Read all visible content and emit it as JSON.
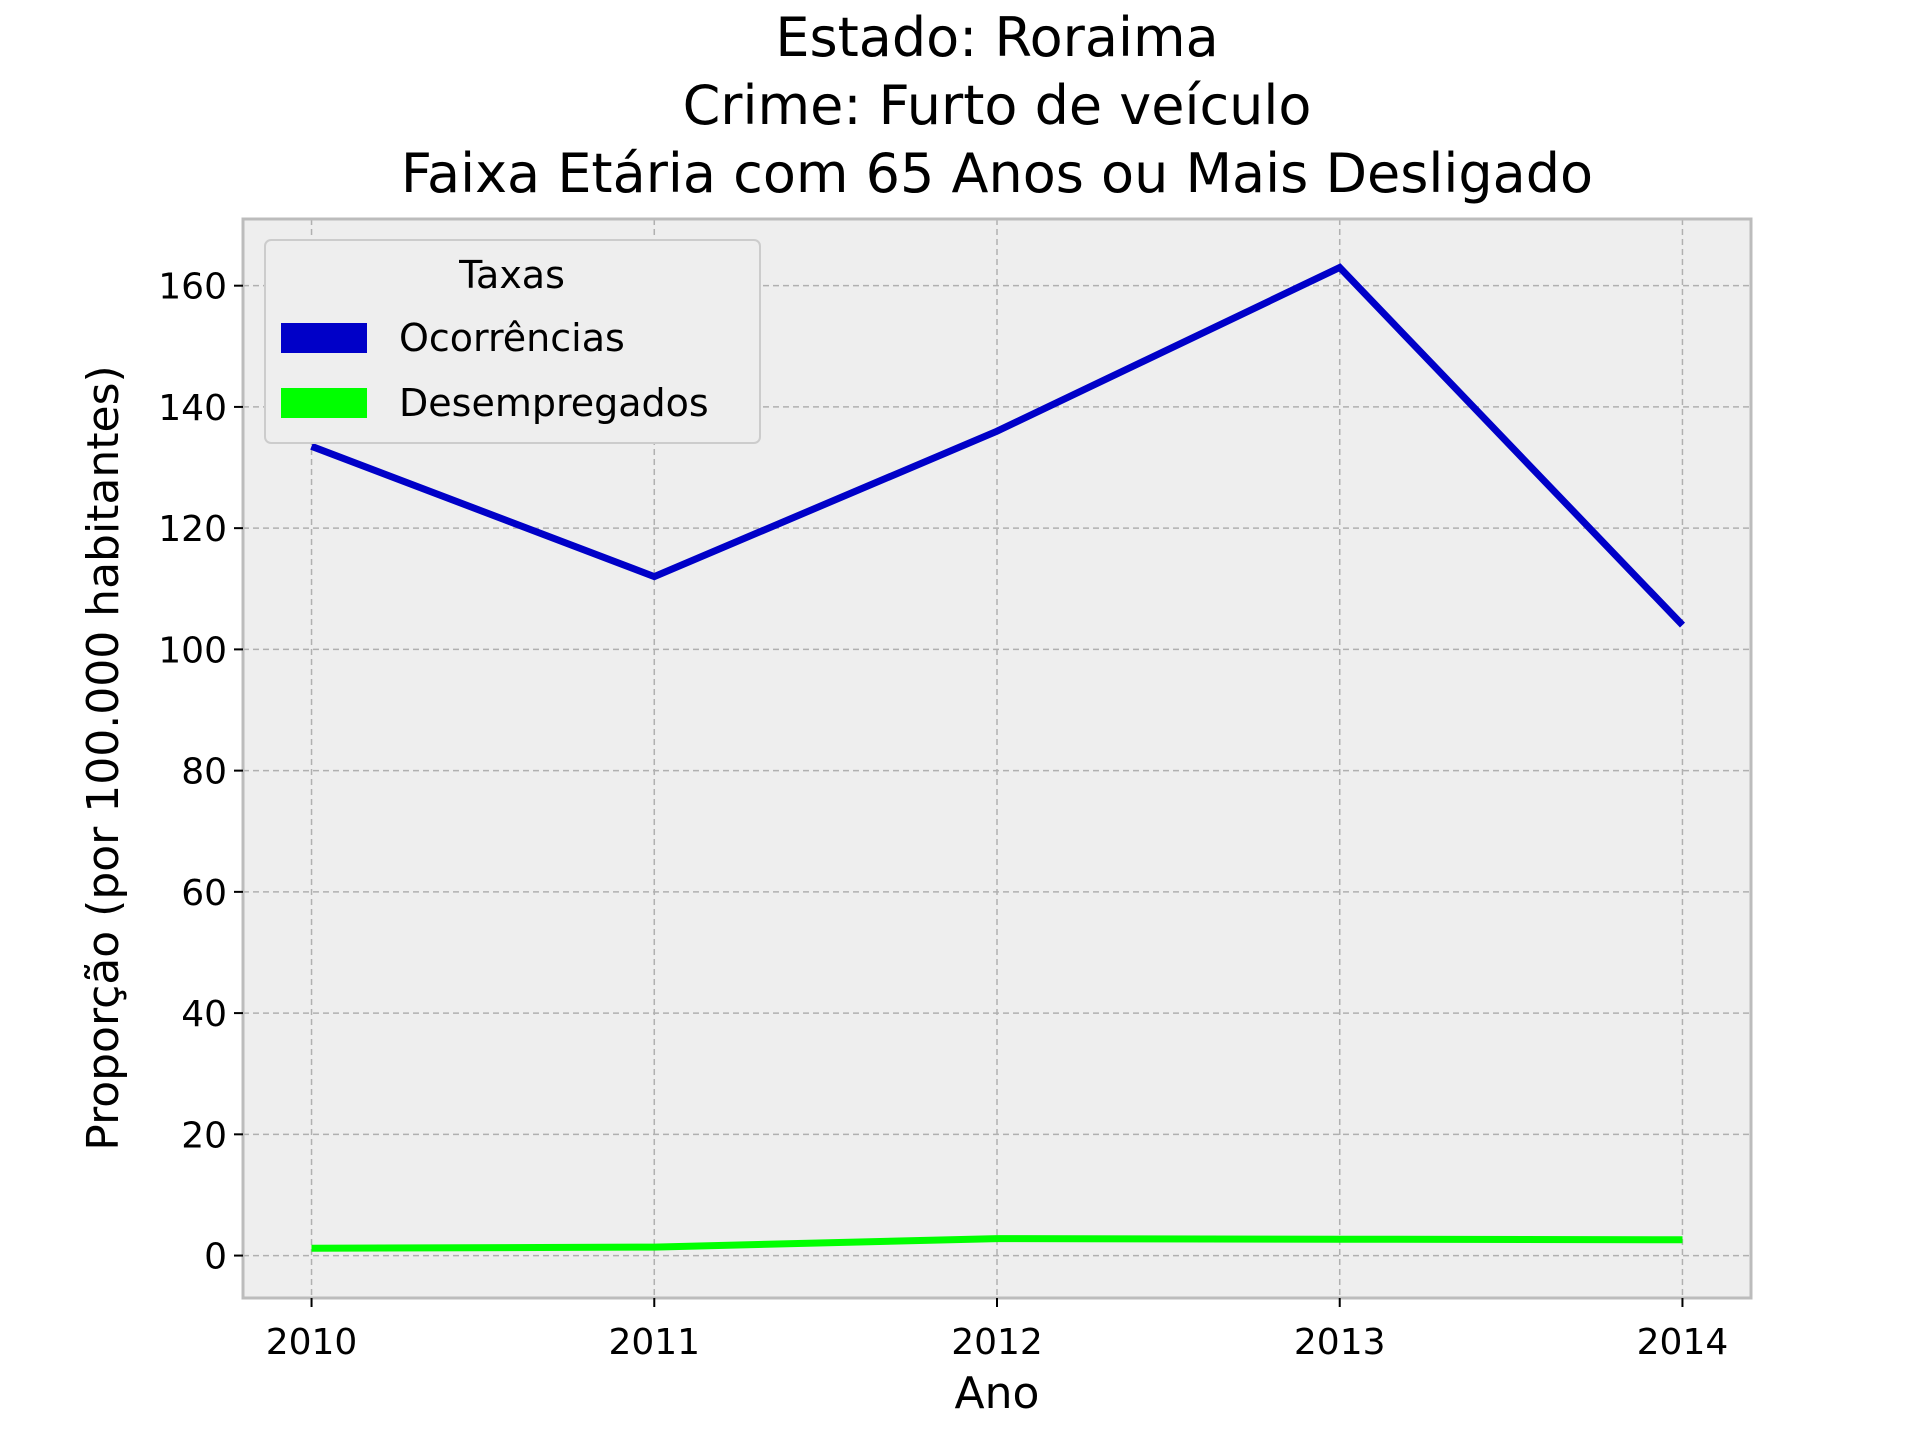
{
  "chart_data": {
    "type": "line",
    "title_lines": [
      "Estado: Roraima",
      "Crime: Furto de veículo",
      "Faixa Etária com 65 Anos ou Mais   Desligado"
    ],
    "xlabel": "Ano",
    "ylabel": "Proporção (por 100.000 habitantes)",
    "x": [
      2010,
      2011,
      2012,
      2013,
      2014
    ],
    "x_tick_labels": [
      "2010",
      "2011",
      "2012",
      "2013",
      "2014"
    ],
    "y_ticks": [
      0,
      20,
      40,
      60,
      80,
      100,
      120,
      140,
      160
    ],
    "y_tick_labels": [
      "0",
      "20",
      "40",
      "60",
      "80",
      "100",
      "120",
      "140",
      "160"
    ],
    "xlim": [
      2009.8,
      2014.2
    ],
    "ylim": [
      -7,
      171
    ],
    "grid": true,
    "legend": {
      "title": "Taxas",
      "position": "top-left"
    },
    "series": [
      {
        "name": "Ocorrências",
        "color": "#0000c8",
        "values": [
          133.5,
          112,
          136,
          163,
          104
        ]
      },
      {
        "name": "Desempregados",
        "color": "#00ff00",
        "values": [
          1.2,
          1.4,
          2.8,
          2.7,
          2.6
        ]
      }
    ],
    "background_color": "#eeeeee",
    "grid_color": "#b0b0b0"
  }
}
